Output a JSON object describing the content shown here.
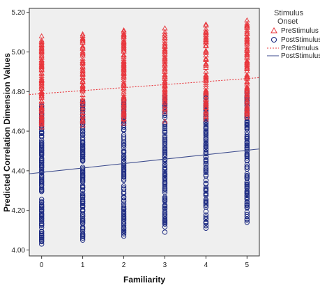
{
  "chart_data": {
    "type": "scatter",
    "xlabel": "Familiarity",
    "ylabel": "Predicted Correlation Dimension Values",
    "xlim": [
      -0.3,
      5.3
    ],
    "ylim": [
      3.97,
      5.22
    ],
    "x_ticks": [
      0,
      1,
      2,
      3,
      4,
      5
    ],
    "x_tick_labels": [
      "0",
      "1",
      "2",
      "3",
      "4",
      "5"
    ],
    "y_ticks": [
      4.0,
      4.2,
      4.4,
      4.6,
      4.8,
      5.0,
      5.2
    ],
    "y_tick_labels": [
      "4.00",
      "4.20",
      "4.40",
      "4.60",
      "4.80",
      "5.00",
      "5.20"
    ],
    "grid": false,
    "legend": {
      "title_line1": "Stimulus",
      "title_line2": "Onset",
      "placement": "right",
      "entries": [
        {
          "label": "PreStimulus",
          "kind": "triangle-marker"
        },
        {
          "label": "PostStimulus",
          "kind": "circle-marker"
        },
        {
          "label": "PreStimulus",
          "kind": "dotted-fit-line"
        },
        {
          "label": "PostStimulus",
          "kind": "solid-fit-line"
        }
      ]
    },
    "series": [
      {
        "name": "PreStimulus",
        "marker": "triangle",
        "color": "#e8343a",
        "x": [
          0,
          1,
          2,
          3,
          4,
          5
        ],
        "y_min": [
          4.62,
          4.63,
          4.64,
          4.65,
          4.66,
          4.67
        ],
        "y_max": [
          5.08,
          5.09,
          5.11,
          5.12,
          5.14,
          5.16
        ],
        "fit_line": {
          "style": "dotted",
          "color": "#e8343a",
          "start": [
            -0.3,
            4.785
          ],
          "end": [
            5.3,
            4.87
          ]
        }
      },
      {
        "name": "PostStimulus",
        "marker": "circle",
        "color": "#1d2b82",
        "x": [
          0,
          1,
          2,
          3,
          4,
          5
        ],
        "y_min": [
          4.03,
          4.05,
          4.07,
          4.09,
          4.11,
          4.14
        ],
        "y_max": [
          4.73,
          4.75,
          4.76,
          4.78,
          4.79,
          4.8
        ],
        "fit_line": {
          "style": "solid",
          "color": "#3b4a8c",
          "start": [
            -0.3,
            4.385
          ],
          "end": [
            5.3,
            4.51
          ]
        }
      }
    ]
  },
  "colors": {
    "plot_background": "#efefef",
    "frame": "#333333"
  }
}
